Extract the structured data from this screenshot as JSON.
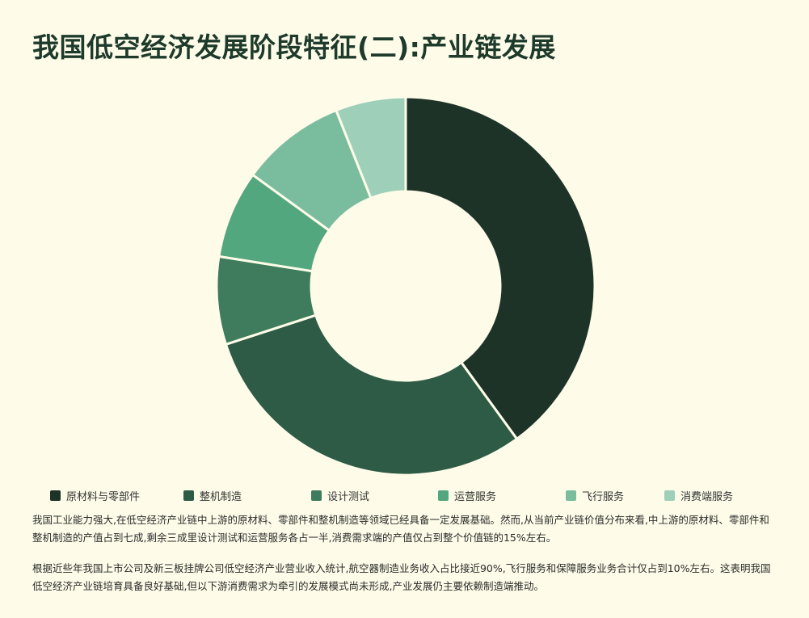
{
  "page": {
    "title": "我国低空经济发展阶段特征(二):产业链发展"
  },
  "chart_data": {
    "type": "pie",
    "variant": "donut",
    "categories": [
      "原材料与零部件",
      "整机制造",
      "设计测试",
      "运营服务",
      "飞行服务",
      "消费端服务"
    ],
    "values": [
      40,
      30,
      7.5,
      7.5,
      9,
      6
    ],
    "colors": [
      "#1d3328",
      "#2e5b46",
      "#3f7c5e",
      "#53a77e",
      "#79bd9e",
      "#9ecfb9"
    ],
    "legend_position": "bottom"
  },
  "paragraphs": [
    "我国工业能力强大,在低空经济产业链中上游的原材料、零部件和整机制造等领域已经具备一定发展基础。然而,从当前产业链价值分布来看,中上游的原材料、零部件和整机制造的产值占到七成,剩余三成里设计测试和运营服务各占一半,消费需求端的产值仅占到整个价值链的15%左右。",
    "根据近些年我国上市公司及新三板挂牌公司低空经济产业营业收入统计,航空器制造业务收入占比接近90%,飞行服务和保障服务业务合计仅占到10%左右。这表明我国低空经济产业链培育具备良好基础,但以下游消费需求为牵引的发展模式尚未形成,产业发展仍主要依赖制造端推动。"
  ]
}
